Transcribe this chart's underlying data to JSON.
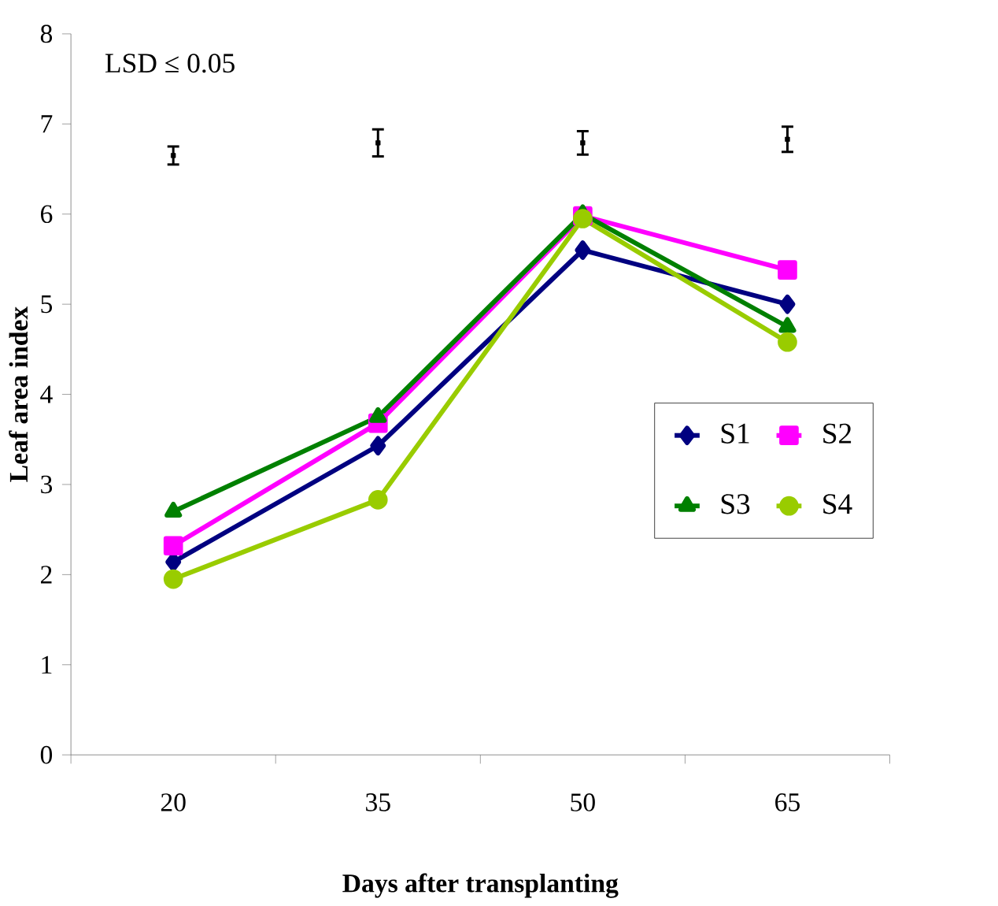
{
  "chart_data": {
    "type": "line",
    "xlabel": "Days after transplanting",
    "ylabel": "Leaf area index",
    "categories": [
      "20",
      "35",
      "50",
      "65"
    ],
    "ylim": [
      0,
      8
    ],
    "yticks": [
      0,
      1,
      2,
      3,
      4,
      5,
      6,
      7,
      8
    ],
    "legend": "right",
    "grid": false,
    "annotations": [
      "LSD ≤ 0.05"
    ],
    "series": [
      {
        "name": "S1",
        "color": "#000080",
        "marker": "diamond",
        "values": [
          2.14,
          3.43,
          5.6,
          5.0
        ]
      },
      {
        "name": "S2",
        "color": "#ff00ff",
        "marker": "square",
        "values": [
          2.32,
          3.68,
          5.98,
          5.38
        ]
      },
      {
        "name": "S3",
        "color": "#008000",
        "marker": "triangle",
        "values": [
          2.7,
          3.75,
          6.0,
          4.75
        ]
      },
      {
        "name": "S4",
        "color": "#99cc00",
        "marker": "circle",
        "values": [
          1.95,
          2.83,
          5.95,
          4.58
        ]
      },
      {
        "type": "scatter",
        "color": "#000000",
        "marker": "square",
        "values": [
          6.65,
          6.79,
          6.79,
          6.83
        ],
        "errors": [
          0.1,
          0.15,
          0.13,
          0.14
        ]
      }
    ]
  }
}
